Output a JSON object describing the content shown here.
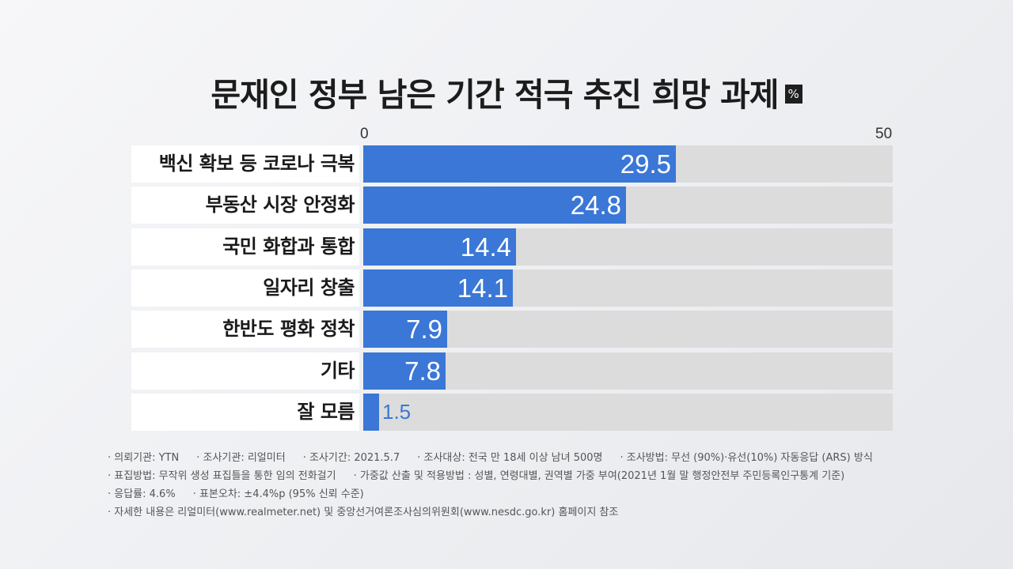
{
  "header": {
    "title": "문재인 정부 남은 기간 적극 추진 희망 과제",
    "unit": "%"
  },
  "chart_data": {
    "type": "bar",
    "orientation": "horizontal",
    "title": "문재인 정부 남은 기간 적극 추진 희망 과제",
    "categories": [
      "백신 확보 등 코로나 극복",
      "부동산 시장 안정화",
      "국민 화합과 통합",
      "일자리 창출",
      "한반도 평화 정착",
      "기타",
      "잘 모름"
    ],
    "values": [
      29.5,
      24.8,
      14.4,
      14.1,
      7.9,
      7.8,
      1.5
    ],
    "value_labels": [
      "29.5",
      "24.8",
      "14.4",
      "14.1",
      "7.9",
      "7.8",
      "1.5"
    ],
    "xlim": [
      0,
      50
    ],
    "x_ticks": [
      "0",
      "50"
    ],
    "grid": false,
    "colors": {
      "bar": "#3a77d6",
      "track": "#dcdcdc",
      "label_bg": "#ffffff"
    }
  },
  "notes": [
    [
      "· 의뢰기관: YTN",
      "· 조사기관: 리얼미터",
      "· 조사기간: 2021.5.7",
      "· 조사대상: 전국 만 18세 이상 남녀 500명",
      "· 조사방법: 무선 (90%)·유선(10%) 자동응답 (ARS)  방식"
    ],
    [
      "· 표집방법: 무작위 생성 표집틀을 통한 임의 전화걸기",
      "· 가중값 산출 및 적용방법 : 성별, 연령대별, 권역별 가중 부여(2021년 1월 말 행정안전부 주민등록인구통계 기준)"
    ],
    [
      "· 응답률: 4.6%",
      "· 표본오차: ±4.4%p (95% 신뢰 수준)"
    ],
    [
      "· 자세한 내용은 리얼미터(www.realmeter.net) 및 중앙선거여론조사심의위원회(www.nesdc.go.kr) 홈페이지 참조"
    ]
  ]
}
